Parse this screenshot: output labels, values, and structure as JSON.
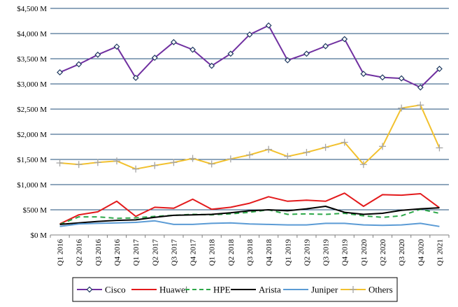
{
  "chart_data": {
    "type": "line",
    "categories": [
      "Q1 2016",
      "Q2 2016",
      "Q3 2016",
      "Q4 2016",
      "Q1 2017",
      "Q2 2017",
      "Q3 2017",
      "Q4 2017",
      "Q1 2018",
      "Q2 2018",
      "Q3 2018",
      "Q4 2018",
      "Q1 2019",
      "Q2 2019",
      "Q3 2019",
      "Q4 2019",
      "Q1 2020",
      "Q2 2020",
      "Q3 2020",
      "Q4 2020",
      "Q1 2021"
    ],
    "ylim": [
      0,
      4500
    ],
    "yticks": [
      0,
      500,
      1000,
      1500,
      2000,
      2500,
      3000,
      3500,
      4000,
      4500
    ],
    "ytick_labels": [
      "$0 M",
      "$500 M",
      "$1,000 M",
      "$1,500 M",
      "$2,000 M",
      "$2,500 M",
      "$3,000 M",
      "$3,500 M",
      "$4,000 M",
      "$4,500 M"
    ],
    "grid": "horizontal",
    "legend_position": "bottom",
    "title": "",
    "xlabel": "",
    "ylabel": "",
    "series": [
      {
        "name": "Cisco",
        "color": "#7030A0",
        "dash": "solid",
        "marker": "diamond",
        "values": [
          3230,
          3390,
          3580,
          3740,
          3120,
          3520,
          3830,
          3680,
          3360,
          3600,
          3980,
          4160,
          3470,
          3600,
          3750,
          3890,
          3200,
          3130,
          3110,
          2930,
          3300
        ]
      },
      {
        "name": "Huawei",
        "color": "#E31A1C",
        "dash": "solid",
        "marker": "none",
        "values": [
          220,
          400,
          460,
          670,
          370,
          550,
          530,
          710,
          510,
          550,
          630,
          760,
          670,
          690,
          670,
          830,
          570,
          800,
          790,
          820,
          540
        ]
      },
      {
        "name": "HPE",
        "color": "#2EA84A",
        "dash": "dashed",
        "marker": "none",
        "values": [
          210,
          360,
          360,
          330,
          340,
          370,
          390,
          410,
          400,
          420,
          450,
          500,
          410,
          420,
          410,
          430,
          380,
          350,
          380,
          510,
          430
        ]
      },
      {
        "name": "Arista",
        "color": "#000000",
        "dash": "solid",
        "marker": "none",
        "values": [
          210,
          240,
          270,
          290,
          300,
          350,
          390,
          400,
          410,
          440,
          480,
          500,
          480,
          520,
          570,
          450,
          410,
          430,
          490,
          520,
          540
        ]
      },
      {
        "name": "Juniper",
        "color": "#5B9BD5",
        "dash": "solid",
        "marker": "none",
        "values": [
          170,
          220,
          230,
          240,
          250,
          280,
          210,
          210,
          230,
          240,
          220,
          210,
          200,
          200,
          230,
          230,
          200,
          190,
          200,
          230,
          170
        ]
      },
      {
        "name": "Others",
        "color": "#F2C12E",
        "dash": "solid",
        "marker": "plus",
        "values": [
          1430,
          1400,
          1440,
          1470,
          1310,
          1380,
          1440,
          1520,
          1410,
          1510,
          1590,
          1700,
          1560,
          1640,
          1740,
          1840,
          1400,
          1760,
          2520,
          2580,
          1730
        ]
      }
    ]
  }
}
